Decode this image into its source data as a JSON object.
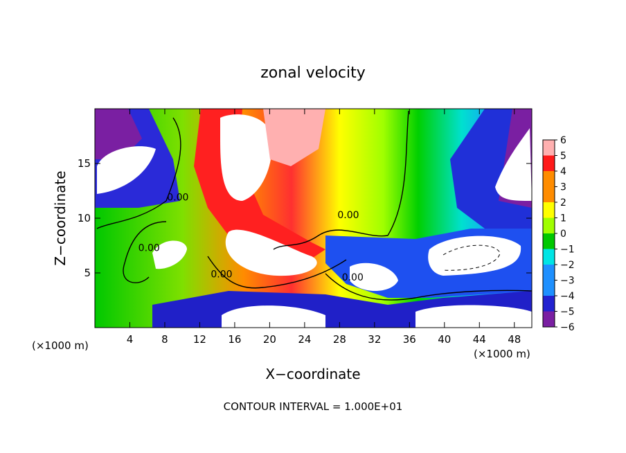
{
  "chart_data": {
    "type": "heatmap",
    "title": "zonal velocity",
    "xlabel": "X−coordinate",
    "ylabel": "Z−coordinate",
    "x_unit_label": "(×1000 m)",
    "y_unit_label": "(×1000 m)",
    "xlim": [
      0,
      50
    ],
    "ylim": [
      0,
      20
    ],
    "x_ticks": [
      4,
      8,
      12,
      16,
      20,
      24,
      28,
      32,
      36,
      40,
      44,
      48
    ],
    "y_ticks": [
      5,
      10,
      15
    ],
    "colorbar": {
      "min": -6,
      "max": 6,
      "ticks": [
        "6",
        "5",
        "4",
        "3",
        "2",
        "1",
        "0",
        "−1",
        "−2",
        "−3",
        "−4",
        "−5",
        "−6"
      ],
      "colormap": [
        "#7a1fa2",
        "#2222d0",
        "#1e90ff",
        "#00e5e5",
        "#00c800",
        "#a0ff00",
        "#ffff00",
        "#ff8c00",
        "#ff1a1a",
        "#ffb0b0"
      ],
      "out_of_range_color": "#ffffff"
    },
    "contour_labels": [
      {
        "text": "0.00",
        "x": 9.5,
        "y": 11.6
      },
      {
        "text": "0.00",
        "x": 29.0,
        "y": 10.0
      },
      {
        "text": "0.00",
        "x": 6.2,
        "y": 7.0
      },
      {
        "text": "0.00",
        "x": 14.5,
        "y": 4.6
      },
      {
        "text": "0.00",
        "x": 29.5,
        "y": 4.3
      }
    ],
    "field_description": "zonal velocity shaded field with zero contour lines",
    "footer": "CONTOUR INTERVAL = 1.000E+01"
  }
}
